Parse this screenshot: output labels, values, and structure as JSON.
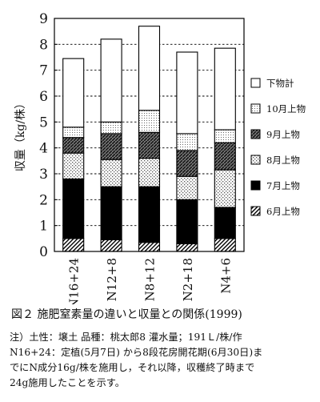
{
  "chart_data": {
    "type": "bar",
    "stacked": true,
    "categories": [
      "N16+24",
      "N12+8",
      "N8+12",
      "N2+18",
      "N4+6"
    ],
    "series": [
      {
        "name": "6月上物",
        "pattern": "diagonal-hatch",
        "values": [
          0.5,
          0.45,
          0.35,
          0.3,
          0.5
        ]
      },
      {
        "name": "7月上物",
        "pattern": "solid-black",
        "values": [
          2.3,
          2.05,
          2.15,
          1.7,
          1.2
        ]
      },
      {
        "name": "8月上物",
        "pattern": "light-dots",
        "values": [
          1.0,
          1.05,
          1.1,
          0.9,
          1.45
        ]
      },
      {
        "name": "9月上物",
        "pattern": "cross-hatch",
        "values": [
          0.6,
          1.0,
          1.0,
          1.0,
          1.05
        ]
      },
      {
        "name": "10月上物",
        "pattern": "fine-dots",
        "values": [
          0.4,
          0.45,
          0.85,
          0.65,
          0.5
        ]
      },
      {
        "name": "下物計",
        "pattern": "white",
        "values": [
          2.65,
          3.2,
          3.25,
          3.15,
          3.15
        ]
      }
    ],
    "ylabel": "収量（kg/株）",
    "ylim": [
      0,
      9
    ],
    "yticks": [
      0,
      1,
      2,
      3,
      4,
      5,
      6,
      7,
      8,
      9
    ],
    "grid": "dashed horizontal",
    "legend_order": [
      "下物計",
      "10月上物",
      "9月上物",
      "8月上物",
      "7月上物",
      "6月上物"
    ],
    "legend_position": "right"
  },
  "caption": "図２ 施肥窒素量の違いと収量との関係(1999)",
  "notes": [
    "注）土性：壌土 品種：桃太郎8 灌水量；191Ｌ/株/作",
    "N16+24：定植(5月7日) から8段花房開花期(6月30日)ま",
    "でにN成分16g/株を施用し，それ以降，収穫終了時まで",
    "24g施用したことを示す。"
  ]
}
